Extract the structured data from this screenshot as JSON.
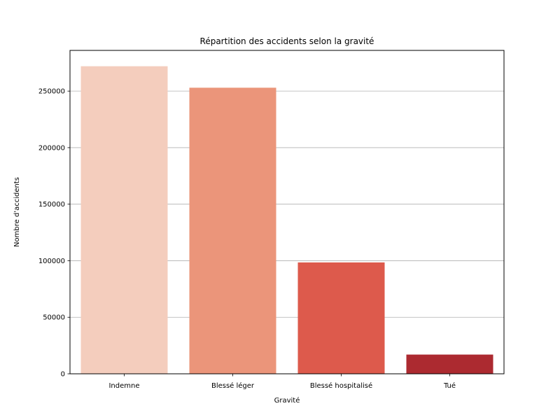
{
  "chart_data": {
    "type": "bar",
    "title": "Répartition des accidents selon la gravité",
    "xlabel": "Gravité",
    "ylabel": "Nombre d'accidents",
    "categories": [
      "Indemne",
      "Blessé léger",
      "Blessé hospitalisé",
      "Tué"
    ],
    "values": [
      272000,
      253000,
      98500,
      17000
    ],
    "colors": [
      "#f4cdbd",
      "#eb957a",
      "#dd5a4c",
      "#ac2a30"
    ],
    "ylim": [
      0,
      286000
    ],
    "yticks": [
      0,
      50000,
      100000,
      150000,
      200000,
      250000
    ],
    "grid": "y"
  }
}
